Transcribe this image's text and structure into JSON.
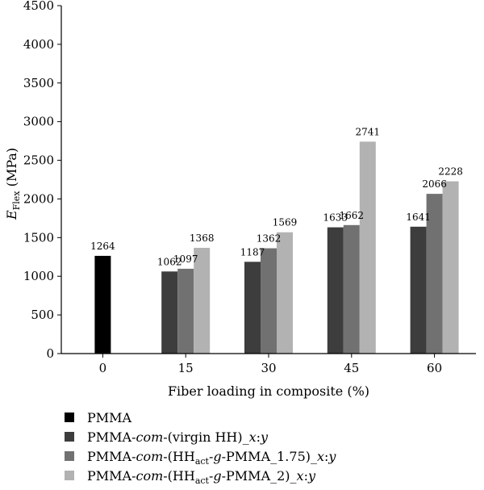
{
  "chart_data": {
    "type": "bar",
    "categories": [
      "0",
      "15",
      "30",
      "45",
      "60"
    ],
    "series": [
      {
        "name": "PMMA",
        "legend_parts": [
          [
            "PMMA",
            ""
          ]
        ],
        "color": "#000000",
        "values": [
          1264,
          null,
          null,
          null,
          null
        ]
      },
      {
        "name": "PMMA-com-(virgin HH)_x:y",
        "legend_parts": [
          [
            "PMMA-",
            ""
          ],
          [
            "com",
            "i"
          ],
          [
            "-(virgin HH)_",
            ""
          ],
          [
            "x",
            "i"
          ],
          [
            ":",
            ""
          ],
          [
            "y",
            "i"
          ]
        ],
        "color": "#3d3d3d",
        "values": [
          null,
          1062,
          1187,
          1633,
          1641
        ]
      },
      {
        "name": "PMMA-com-(HHact-g-PMMA_1.75)_x:y",
        "legend_parts": [
          [
            "PMMA-",
            ""
          ],
          [
            "com",
            "i"
          ],
          [
            "-(HH",
            ""
          ],
          [
            "act",
            "sub"
          ],
          [
            "-",
            ""
          ],
          [
            "g",
            "i"
          ],
          [
            "-PMMA_1.75)_",
            ""
          ],
          [
            "x",
            "i"
          ],
          [
            ":",
            ""
          ],
          [
            "y",
            "i"
          ]
        ],
        "color": "#717171",
        "values": [
          null,
          1097,
          1362,
          1662,
          2066
        ]
      },
      {
        "name": "PMMA-com-(HHact-g-PMMA_2)_x:y",
        "legend_parts": [
          [
            "PMMA-",
            ""
          ],
          [
            "com",
            "i"
          ],
          [
            "-(HH",
            ""
          ],
          [
            "act",
            "sub"
          ],
          [
            "-",
            ""
          ],
          [
            "g",
            "i"
          ],
          [
            "-PMMA_2)_",
            ""
          ],
          [
            "x",
            "i"
          ],
          [
            ":",
            ""
          ],
          [
            "y",
            "i"
          ]
        ],
        "color": "#b2b2b2",
        "values": [
          null,
          1368,
          1569,
          2741,
          2228
        ]
      }
    ],
    "xlabel": "Fiber loading in composite (%)",
    "ylabel_main": "E",
    "ylabel_sub": "Flex",
    "ylabel_unit": " (MPa)",
    "ylim": [
      0,
      4500
    ],
    "yticks": [
      0,
      500,
      1000,
      1500,
      2000,
      2500,
      3000,
      3500,
      4000,
      4500
    ],
    "grid": false,
    "legend_position": "bottom-left"
  }
}
